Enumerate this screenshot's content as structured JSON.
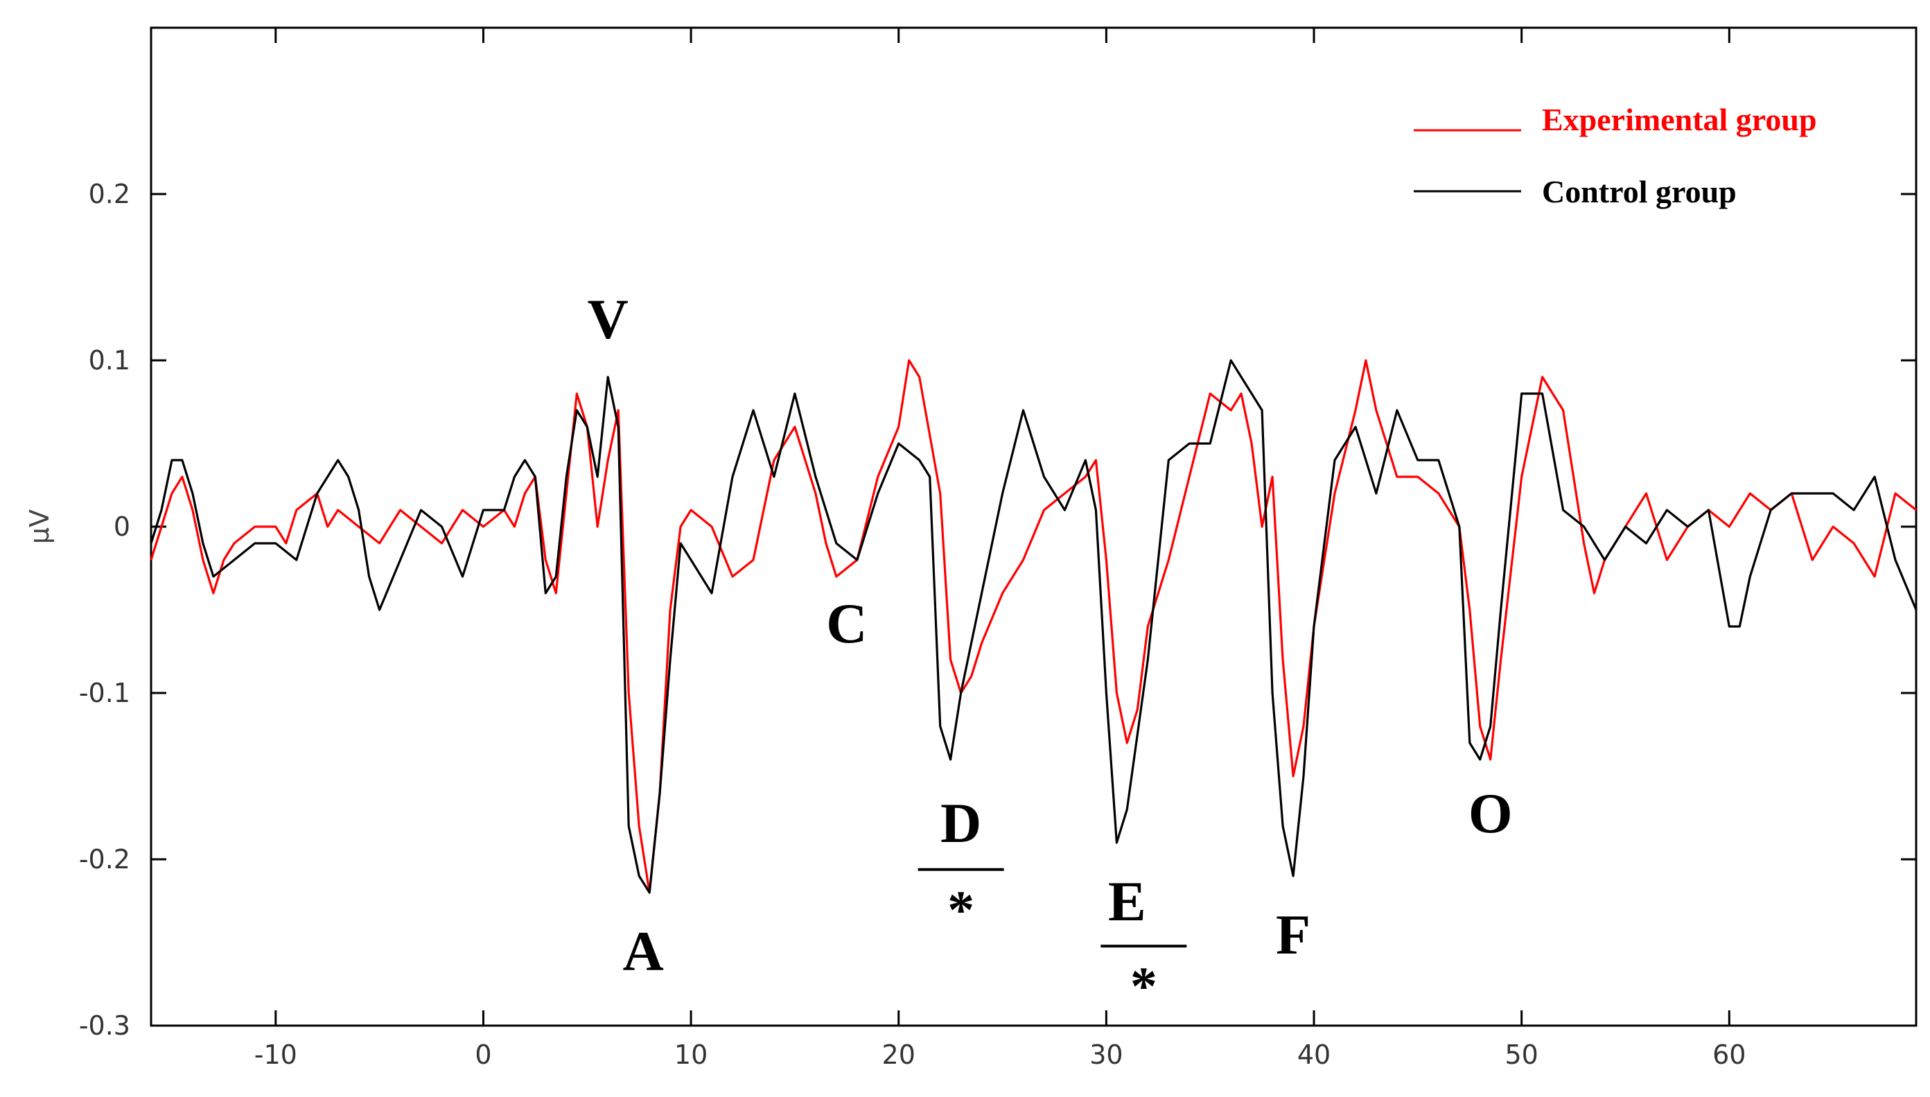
{
  "chart_data": {
    "type": "line",
    "xlabel": "",
    "ylabel": "µV",
    "xlim": [
      -16,
      69
    ],
    "ylim": [
      -0.3,
      0.3
    ],
    "x_ticks": [
      -10,
      0,
      10,
      20,
      30,
      40,
      50,
      60
    ],
    "x_tick_labels": [
      "-10",
      "0",
      "10",
      "20",
      "30",
      "40",
      "50",
      "60"
    ],
    "y_ticks": [
      -0.3,
      -0.2,
      -0.1,
      0,
      0.1,
      0.2
    ],
    "y_tick_labels": [
      "-0.3",
      "-0.2",
      "-0.1",
      "0",
      "0.1",
      "0.2"
    ],
    "grid": false,
    "legend_position": "top-right",
    "series": [
      {
        "name": "Experimental group",
        "color": "#ff0000",
        "points": [
          [
            -16,
            -0.02
          ],
          [
            -15.5,
            0.0
          ],
          [
            -15,
            0.02
          ],
          [
            -14.5,
            0.03
          ],
          [
            -14,
            0.01
          ],
          [
            -13.5,
            -0.02
          ],
          [
            -13,
            -0.04
          ],
          [
            -12.5,
            -0.02
          ],
          [
            -12,
            -0.01
          ],
          [
            -11,
            0.0
          ],
          [
            -10,
            0.0
          ],
          [
            -9.5,
            -0.01
          ],
          [
            -9,
            0.01
          ],
          [
            -8,
            0.02
          ],
          [
            -7.5,
            0.0
          ],
          [
            -7,
            0.01
          ],
          [
            -6,
            0.0
          ],
          [
            -5,
            -0.01
          ],
          [
            -4.5,
            0.0
          ],
          [
            -4,
            0.01
          ],
          [
            -3,
            0.0
          ],
          [
            -2,
            -0.01
          ],
          [
            -1,
            0.01
          ],
          [
            0,
            0.0
          ],
          [
            1,
            0.01
          ],
          [
            1.5,
            0.0
          ],
          [
            2,
            0.02
          ],
          [
            2.5,
            0.03
          ],
          [
            3,
            -0.02
          ],
          [
            3.5,
            -0.04
          ],
          [
            4,
            0.02
          ],
          [
            4.5,
            0.08
          ],
          [
            5,
            0.06
          ],
          [
            5.5,
            0.0
          ],
          [
            6,
            0.04
          ],
          [
            6.5,
            0.07
          ],
          [
            7,
            -0.1
          ],
          [
            7.5,
            -0.18
          ],
          [
            8,
            -0.22
          ],
          [
            8.5,
            -0.16
          ],
          [
            9,
            -0.05
          ],
          [
            9.5,
            0.0
          ],
          [
            10,
            0.01
          ],
          [
            11,
            0.0
          ],
          [
            12,
            -0.03
          ],
          [
            13,
            -0.02
          ],
          [
            14,
            0.04
          ],
          [
            15,
            0.06
          ],
          [
            16,
            0.02
          ],
          [
            16.5,
            -0.01
          ],
          [
            17,
            -0.03
          ],
          [
            18,
            -0.02
          ],
          [
            19,
            0.03
          ],
          [
            20,
            0.06
          ],
          [
            20.5,
            0.1
          ],
          [
            21,
            0.09
          ],
          [
            22,
            0.02
          ],
          [
            22.5,
            -0.08
          ],
          [
            23,
            -0.1
          ],
          [
            23.5,
            -0.09
          ],
          [
            24,
            -0.07
          ],
          [
            25,
            -0.04
          ],
          [
            26,
            -0.02
          ],
          [
            27,
            0.01
          ],
          [
            28,
            0.02
          ],
          [
            29,
            0.03
          ],
          [
            29.5,
            0.04
          ],
          [
            30,
            -0.02
          ],
          [
            30.5,
            -0.1
          ],
          [
            31,
            -0.13
          ],
          [
            31.5,
            -0.11
          ],
          [
            32,
            -0.06
          ],
          [
            33,
            -0.02
          ],
          [
            34,
            0.03
          ],
          [
            35,
            0.08
          ],
          [
            36,
            0.07
          ],
          [
            36.5,
            0.08
          ],
          [
            37,
            0.05
          ],
          [
            37.5,
            0.0
          ],
          [
            38,
            0.03
          ],
          [
            38.5,
            -0.08
          ],
          [
            39,
            -0.15
          ],
          [
            39.5,
            -0.12
          ],
          [
            40,
            -0.06
          ],
          [
            41,
            0.02
          ],
          [
            42,
            0.07
          ],
          [
            42.5,
            0.1
          ],
          [
            43,
            0.07
          ],
          [
            44,
            0.03
          ],
          [
            45,
            0.03
          ],
          [
            46,
            0.02
          ],
          [
            47,
            0.0
          ],
          [
            47.5,
            -0.05
          ],
          [
            48,
            -0.12
          ],
          [
            48.5,
            -0.14
          ],
          [
            49,
            -0.08
          ],
          [
            50,
            0.03
          ],
          [
            51,
            0.09
          ],
          [
            52,
            0.07
          ],
          [
            53,
            -0.01
          ],
          [
            53.5,
            -0.04
          ],
          [
            54,
            -0.02
          ],
          [
            55,
            0.0
          ],
          [
            56,
            0.02
          ],
          [
            57,
            -0.02
          ],
          [
            58,
            0.0
          ],
          [
            59,
            0.01
          ],
          [
            60,
            0.0
          ],
          [
            61,
            0.02
          ],
          [
            62,
            0.01
          ],
          [
            63,
            0.02
          ],
          [
            64,
            -0.02
          ],
          [
            65,
            0.0
          ],
          [
            66,
            -0.01
          ],
          [
            67,
            -0.03
          ],
          [
            68,
            0.02
          ],
          [
            69,
            0.01
          ]
        ]
      },
      {
        "name": "Control group",
        "color": "#000000",
        "points": [
          [
            -16,
            -0.01
          ],
          [
            -15.5,
            0.01
          ],
          [
            -15,
            0.04
          ],
          [
            -14.5,
            0.04
          ],
          [
            -14,
            0.02
          ],
          [
            -13.5,
            -0.01
          ],
          [
            -13,
            -0.03
          ],
          [
            -12,
            -0.02
          ],
          [
            -11,
            -0.01
          ],
          [
            -10,
            -0.01
          ],
          [
            -9,
            -0.02
          ],
          [
            -8,
            0.02
          ],
          [
            -7,
            0.04
          ],
          [
            -6.5,
            0.03
          ],
          [
            -6,
            0.01
          ],
          [
            -5.5,
            -0.03
          ],
          [
            -5,
            -0.05
          ],
          [
            -4,
            -0.02
          ],
          [
            -3,
            0.01
          ],
          [
            -2,
            0.0
          ],
          [
            -1,
            -0.03
          ],
          [
            0,
            0.01
          ],
          [
            1,
            0.01
          ],
          [
            1.5,
            0.03
          ],
          [
            2,
            0.04
          ],
          [
            2.5,
            0.03
          ],
          [
            3,
            -0.04
          ],
          [
            3.5,
            -0.03
          ],
          [
            4,
            0.03
          ],
          [
            4.5,
            0.07
          ],
          [
            5,
            0.06
          ],
          [
            5.5,
            0.03
          ],
          [
            6,
            0.09
          ],
          [
            6.5,
            0.06
          ],
          [
            7,
            -0.18
          ],
          [
            7.5,
            -0.21
          ],
          [
            8,
            -0.22
          ],
          [
            8.5,
            -0.16
          ],
          [
            9,
            -0.08
          ],
          [
            9.5,
            -0.01
          ],
          [
            10,
            -0.02
          ],
          [
            11,
            -0.04
          ],
          [
            12,
            0.03
          ],
          [
            13,
            0.07
          ],
          [
            14,
            0.03
          ],
          [
            15,
            0.08
          ],
          [
            16,
            0.03
          ],
          [
            17,
            -0.01
          ],
          [
            18,
            -0.02
          ],
          [
            19,
            0.02
          ],
          [
            20,
            0.05
          ],
          [
            21,
            0.04
          ],
          [
            21.5,
            0.03
          ],
          [
            22,
            -0.12
          ],
          [
            22.5,
            -0.14
          ],
          [
            23,
            -0.1
          ],
          [
            24,
            -0.04
          ],
          [
            25,
            0.02
          ],
          [
            26,
            0.07
          ],
          [
            27,
            0.03
          ],
          [
            28,
            0.01
          ],
          [
            29,
            0.04
          ],
          [
            29.5,
            0.01
          ],
          [
            30,
            -0.1
          ],
          [
            30.5,
            -0.19
          ],
          [
            31,
            -0.17
          ],
          [
            32,
            -0.08
          ],
          [
            33,
            0.04
          ],
          [
            34,
            0.05
          ],
          [
            35,
            0.05
          ],
          [
            36,
            0.1
          ],
          [
            36.5,
            0.09
          ],
          [
            37,
            0.08
          ],
          [
            37.5,
            0.07
          ],
          [
            38,
            -0.1
          ],
          [
            38.5,
            -0.18
          ],
          [
            39,
            -0.21
          ],
          [
            39.5,
            -0.15
          ],
          [
            40,
            -0.06
          ],
          [
            41,
            0.04
          ],
          [
            42,
            0.06
          ],
          [
            43,
            0.02
          ],
          [
            44,
            0.07
          ],
          [
            45,
            0.04
          ],
          [
            46,
            0.04
          ],
          [
            47,
            0.0
          ],
          [
            47.5,
            -0.13
          ],
          [
            48,
            -0.14
          ],
          [
            48.5,
            -0.12
          ],
          [
            49,
            -0.05
          ],
          [
            50,
            0.08
          ],
          [
            51,
            0.08
          ],
          [
            52,
            0.01
          ],
          [
            53,
            0.0
          ],
          [
            54,
            -0.02
          ],
          [
            55,
            0.0
          ],
          [
            56,
            -0.01
          ],
          [
            57,
            0.01
          ],
          [
            58,
            0.0
          ],
          [
            59,
            0.01
          ],
          [
            60,
            -0.06
          ],
          [
            60.5,
            -0.06
          ],
          [
            61,
            -0.03
          ],
          [
            62,
            0.01
          ],
          [
            63,
            0.02
          ],
          [
            64,
            0.02
          ],
          [
            65,
            0.02
          ],
          [
            66,
            0.01
          ],
          [
            67,
            0.03
          ],
          [
            68,
            -0.02
          ],
          [
            69,
            -0.05
          ]
        ]
      }
    ],
    "annotations": [
      {
        "text": "V",
        "x": 6.0,
        "y": 0.125
      },
      {
        "text": "A",
        "x": 7.7,
        "y": -0.255
      },
      {
        "text": "C",
        "x": 17.5,
        "y": -0.058
      },
      {
        "text": "D",
        "x": 23.0,
        "y": -0.178
      },
      {
        "text": "*",
        "x": 23.0,
        "y": -0.232,
        "underline_above": true
      },
      {
        "text": "E",
        "x": 31.0,
        "y": -0.225
      },
      {
        "text": "*",
        "x": 31.8,
        "y": -0.278,
        "underline_above": true
      },
      {
        "text": "F",
        "x": 39.0,
        "y": -0.245
      },
      {
        "text": "O",
        "x": 48.5,
        "y": -0.172
      }
    ]
  }
}
